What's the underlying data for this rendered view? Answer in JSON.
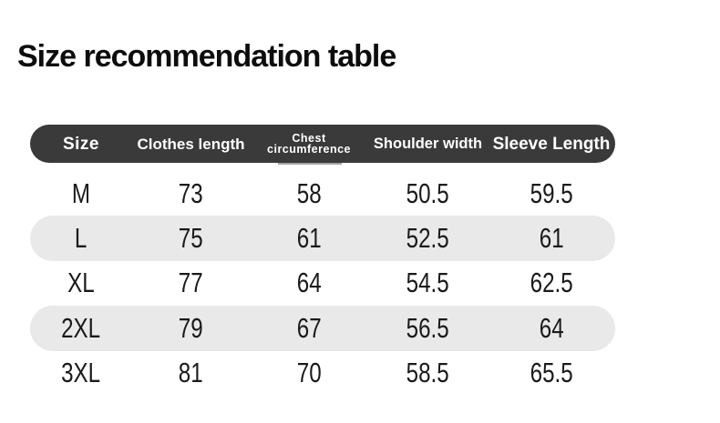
{
  "page": {
    "title": "Size recommendation table"
  },
  "table": {
    "header": {
      "labels": [
        "Size",
        "Clothes length",
        "Chest circumference",
        "Shoulder width",
        "Sleeve Length"
      ]
    },
    "rows": [
      {
        "cells": [
          "M",
          "73",
          "58",
          "50.5",
          "59.5"
        ]
      },
      {
        "cells": [
          "L",
          "75",
          "61",
          "52.5",
          "61"
        ]
      },
      {
        "cells": [
          "XL",
          "77",
          "64",
          "54.5",
          "62.5"
        ]
      },
      {
        "cells": [
          "2XL",
          "79",
          "67",
          "56.5",
          "64"
        ]
      },
      {
        "cells": [
          "3XL",
          "81",
          "70",
          "58.5",
          "65.5"
        ]
      }
    ]
  },
  "colors": {
    "header_bg": "#3a3a3a",
    "header_text": "#ffffff",
    "stripe_bg": "#e9e9e9",
    "title_text": "#0d0d0d",
    "body_text": "#1a1a1a"
  }
}
